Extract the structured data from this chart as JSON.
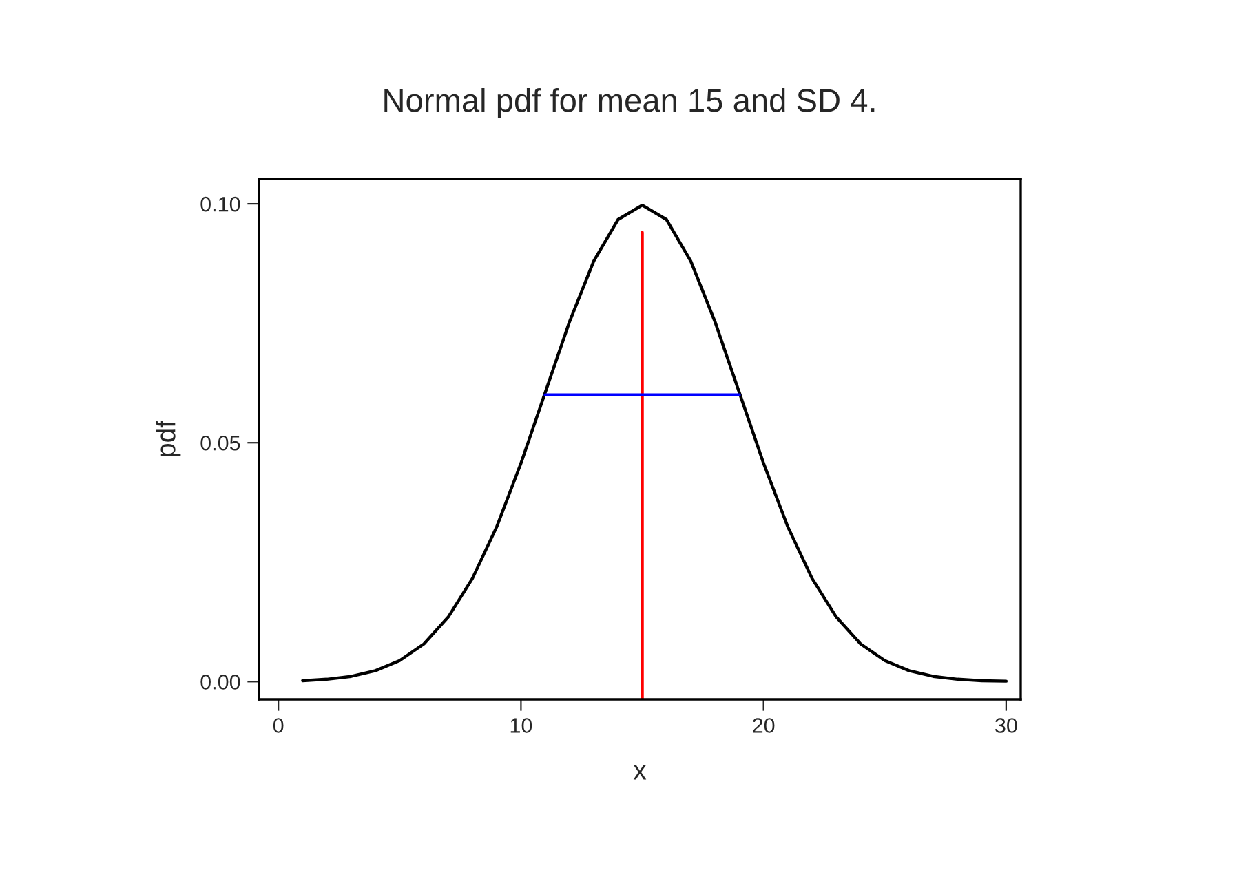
{
  "chart_data": {
    "type": "line",
    "title": "Normal pdf for mean 15 and SD 4.",
    "xlabel": "x",
    "ylabel": "pdf",
    "series": [
      {
        "color": "#000000",
        "x": [
          1,
          2,
          3,
          4,
          5,
          6,
          7,
          8,
          9,
          10,
          11,
          12,
          13,
          14,
          15,
          16,
          17,
          18,
          19,
          20,
          21,
          22,
          23,
          24,
          25,
          26,
          27,
          28,
          29,
          30
        ],
        "values": [
          0.0002,
          0.0005,
          0.0011,
          0.0023,
          0.0044,
          0.0079,
          0.0135,
          0.0216,
          0.0324,
          0.0457,
          0.0605,
          0.0753,
          0.088,
          0.0967,
          0.0997,
          0.0967,
          0.088,
          0.0753,
          0.0605,
          0.0457,
          0.0324,
          0.0216,
          0.0135,
          0.0079,
          0.0044,
          0.0023,
          0.0011,
          0.0005,
          0.0002,
          0.0001
        ]
      },
      {
        "color": "#ff0000",
        "x": [
          15,
          15
        ],
        "values": [
          -0.0037,
          0.094
        ]
      },
      {
        "color": "#0000ff",
        "x": [
          11,
          19
        ],
        "values": [
          0.06,
          0.06
        ]
      }
    ],
    "xlim": [
      -0.8,
      30.6
    ],
    "ylim": [
      -0.0037,
      0.1052
    ],
    "xticks": [
      0,
      10,
      20,
      30
    ],
    "yticks": [
      {
        "value": 0,
        "label": "0.00"
      },
      {
        "value": 0.05,
        "label": "0.05"
      },
      {
        "value": 0.1,
        "label": "0.10"
      }
    ],
    "grid": false,
    "legend": false,
    "marker": "none",
    "line_style": "solid"
  }
}
